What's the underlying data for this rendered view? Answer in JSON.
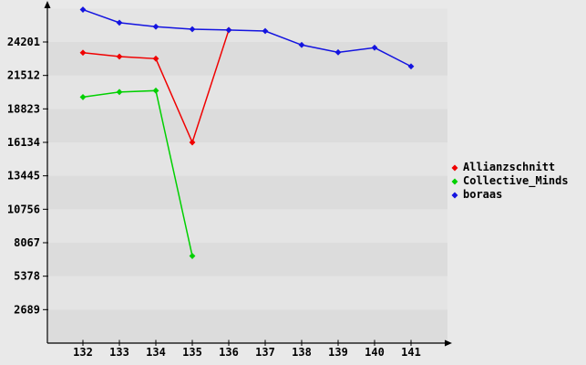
{
  "colors": {
    "page_background": "#e9e9e9",
    "band_light": "#e4e4e4",
    "band_dark": "#dcdcdc",
    "axis": "#000000",
    "tick_text": "#000000",
    "legend_text": "#000000"
  },
  "chart_data": {
    "type": "line",
    "title": "",
    "xlabel": "",
    "ylabel": "",
    "x": [
      132,
      133,
      134,
      135,
      136,
      137,
      138,
      139,
      140,
      141
    ],
    "x_tick_labels": [
      "132",
      "133",
      "134",
      "135",
      "136",
      "137",
      "138",
      "139",
      "140",
      "141"
    ],
    "y_ticks": [
      2689,
      5378,
      8067,
      10756,
      13445,
      16134,
      18823,
      21512,
      24201
    ],
    "y_tick_labels": [
      "2689",
      "5378",
      "8067",
      "10756",
      "13445",
      "16134",
      "18823",
      "21512",
      "24201"
    ],
    "ylim": [
      0,
      26890
    ],
    "grid": "alternating horizontal bands, no gridlines",
    "legend_position": "right",
    "marker": "diamond",
    "series": [
      {
        "name": "Allianzschnitt",
        "color": "#f00000",
        "x": [
          132,
          133,
          134,
          135,
          136
        ],
        "values": [
          23340,
          23030,
          22860,
          16130,
          25160
        ]
      },
      {
        "name": "Collective_Minds",
        "color": "#00d000",
        "x": [
          132,
          133,
          134,
          135
        ],
        "values": [
          19770,
          20180,
          20290,
          7000
        ]
      },
      {
        "name": "boraas",
        "color": "#1414e0",
        "x": [
          132,
          133,
          134,
          135,
          136,
          137,
          138,
          139,
          140,
          141
        ],
        "values": [
          26800,
          25750,
          25430,
          25230,
          25160,
          25080,
          23960,
          23370,
          23740,
          22240
        ]
      }
    ]
  },
  "legend": {
    "items": [
      {
        "label": "Allianzschnitt",
        "marker": "red-diamond"
      },
      {
        "label": "Collective_Minds",
        "marker": "green-diamond"
      },
      {
        "label": "boraas",
        "marker": "blue-diamond"
      }
    ]
  }
}
